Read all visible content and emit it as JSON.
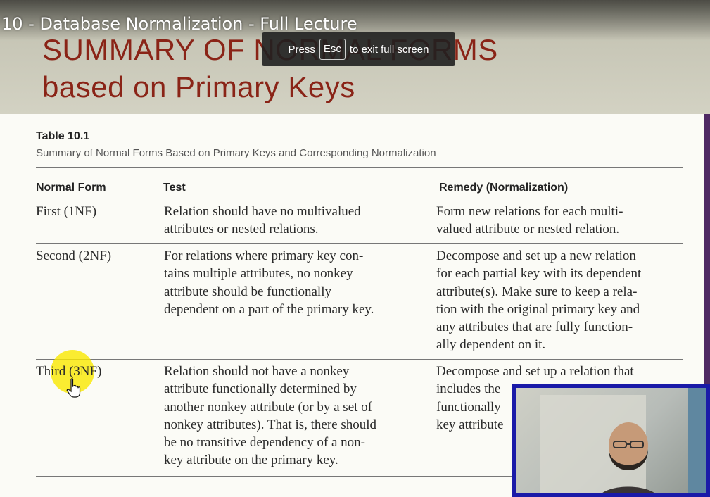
{
  "video": {
    "title": "10 - Database Normalization - Full Lecture"
  },
  "fullscreen_toast": {
    "prefix": "Press",
    "key": "Esc",
    "suffix": "to exit full screen"
  },
  "slide": {
    "title_lines": [
      "SUMMARY OF NORMAL FORMS",
      "based on Primary Keys"
    ],
    "table_label": "Table 10.1",
    "table_caption": "Summary of Normal Forms Based on Primary Keys and Corresponding Normalization",
    "columns": [
      "Normal Form",
      "Test",
      "Remedy (Normalization)"
    ],
    "rows": [
      {
        "form": "First (1NF)",
        "test": [
          "Relation should have no multivalued",
          "attributes or nested relations."
        ],
        "remedy": [
          "Form new relations for each multi-",
          "valued attribute or nested relation."
        ]
      },
      {
        "form": "Second (2NF)",
        "test": [
          "For relations where primary key con-",
          "tains multiple attributes, no nonkey",
          "attribute should be functionally",
          "dependent on a part of the primary key."
        ],
        "remedy": [
          "Decompose and set up a new relation",
          "for each partial key with its dependent",
          "attribute(s). Make sure to keep a rela-",
          "tion with the original primary key and",
          "any attributes that are fully function-",
          "ally dependent on it."
        ]
      },
      {
        "form": "Third (3NF)",
        "test": [
          "Relation should not have a nonkey",
          "attribute functionally determined by",
          "another nonkey attribute (or by a set of",
          "nonkey attributes). That is, there should",
          "be no transitive dependency of a non-",
          "key attribute on the primary key."
        ],
        "remedy": [
          "Decompose and set up a relation that",
          "includes the",
          "functionally",
          "key attribute"
        ]
      }
    ]
  },
  "colors": {
    "slide_title": "#8a2417",
    "webcam_border": "#1a1aa8",
    "pointer_highlight": "#fae800",
    "slide_edge": "#4f2a64"
  },
  "icons": {
    "pointer": "hand-pointer-icon"
  }
}
